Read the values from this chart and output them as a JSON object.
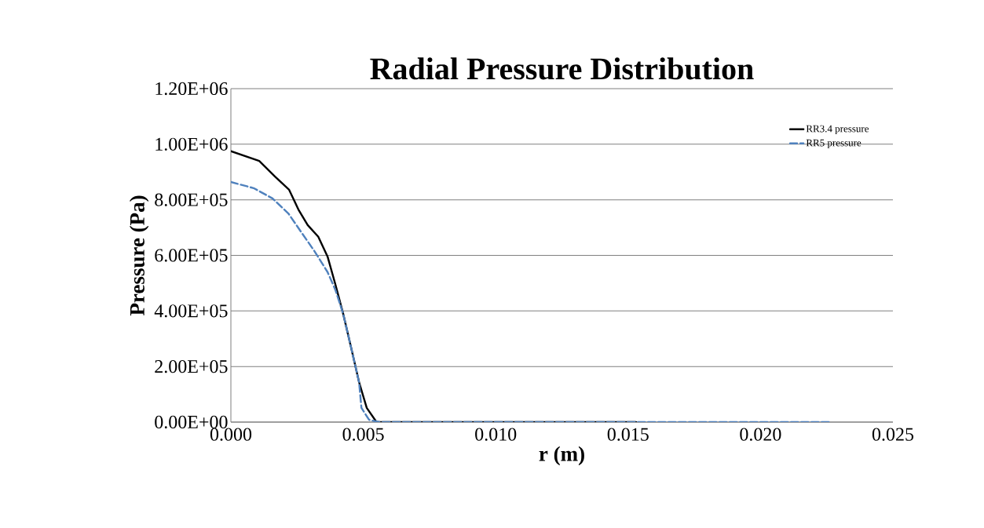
{
  "chart_data": {
    "type": "line",
    "title": "Radial Pressure Distribution",
    "xlabel": "r (m)",
    "ylabel": "Pressure (Pa)",
    "xlim": [
      0,
      0.025
    ],
    "xticks": [
      {
        "value": 0,
        "label": "0.000"
      },
      {
        "value": 0.005,
        "label": "0.005"
      },
      {
        "value": 0.01,
        "label": "0.010"
      },
      {
        "value": 0.015,
        "label": "0.015"
      },
      {
        "value": 0.02,
        "label": "0.020"
      },
      {
        "value": 0.025,
        "label": "0.025"
      }
    ],
    "ylim": [
      0,
      1200000
    ],
    "yticks": [
      {
        "value": 0,
        "label": "0.00E+00"
      },
      {
        "value": 200000,
        "label": "2.00E+05"
      },
      {
        "value": 400000,
        "label": "4.00E+05"
      },
      {
        "value": 600000,
        "label": "6.00E+05"
      },
      {
        "value": 800000,
        "label": "8.00E+05"
      },
      {
        "value": 1000000,
        "label": "1.00E+06"
      },
      {
        "value": 1200000,
        "label": "1.20E+06"
      }
    ],
    "grid": "y",
    "legend": "top right",
    "marker": "none",
    "series": [
      {
        "name": "RR3.4 pressure",
        "color": "#000000",
        "line_style": "solid",
        "x": [
          0,
          0.00107,
          0.00166,
          0.0022,
          0.00255,
          0.0029,
          0.0033,
          0.00365,
          0.00395,
          0.00424,
          0.00454,
          0.00484,
          0.00513,
          0.0055,
          0.0153
        ],
        "values": [
          975000,
          940000,
          884000,
          836000,
          765000,
          709000,
          667000,
          596000,
          494000,
          390000,
          268000,
          144000,
          51000,
          0,
          0
        ]
      },
      {
        "name": "RR5 pressure",
        "color": "#4f81bd",
        "line_style": "dashed",
        "x": [
          0,
          0.00086,
          0.00157,
          0.00217,
          0.00264,
          0.00315,
          0.00365,
          0.00395,
          0.00424,
          0.00454,
          0.00484,
          0.00493,
          0.00522,
          0.0056,
          0.0226
        ],
        "values": [
          864000,
          842000,
          805000,
          751000,
          686000,
          616000,
          540000,
          475000,
          390000,
          268000,
          144000,
          51000,
          8000,
          0,
          0
        ]
      }
    ]
  }
}
